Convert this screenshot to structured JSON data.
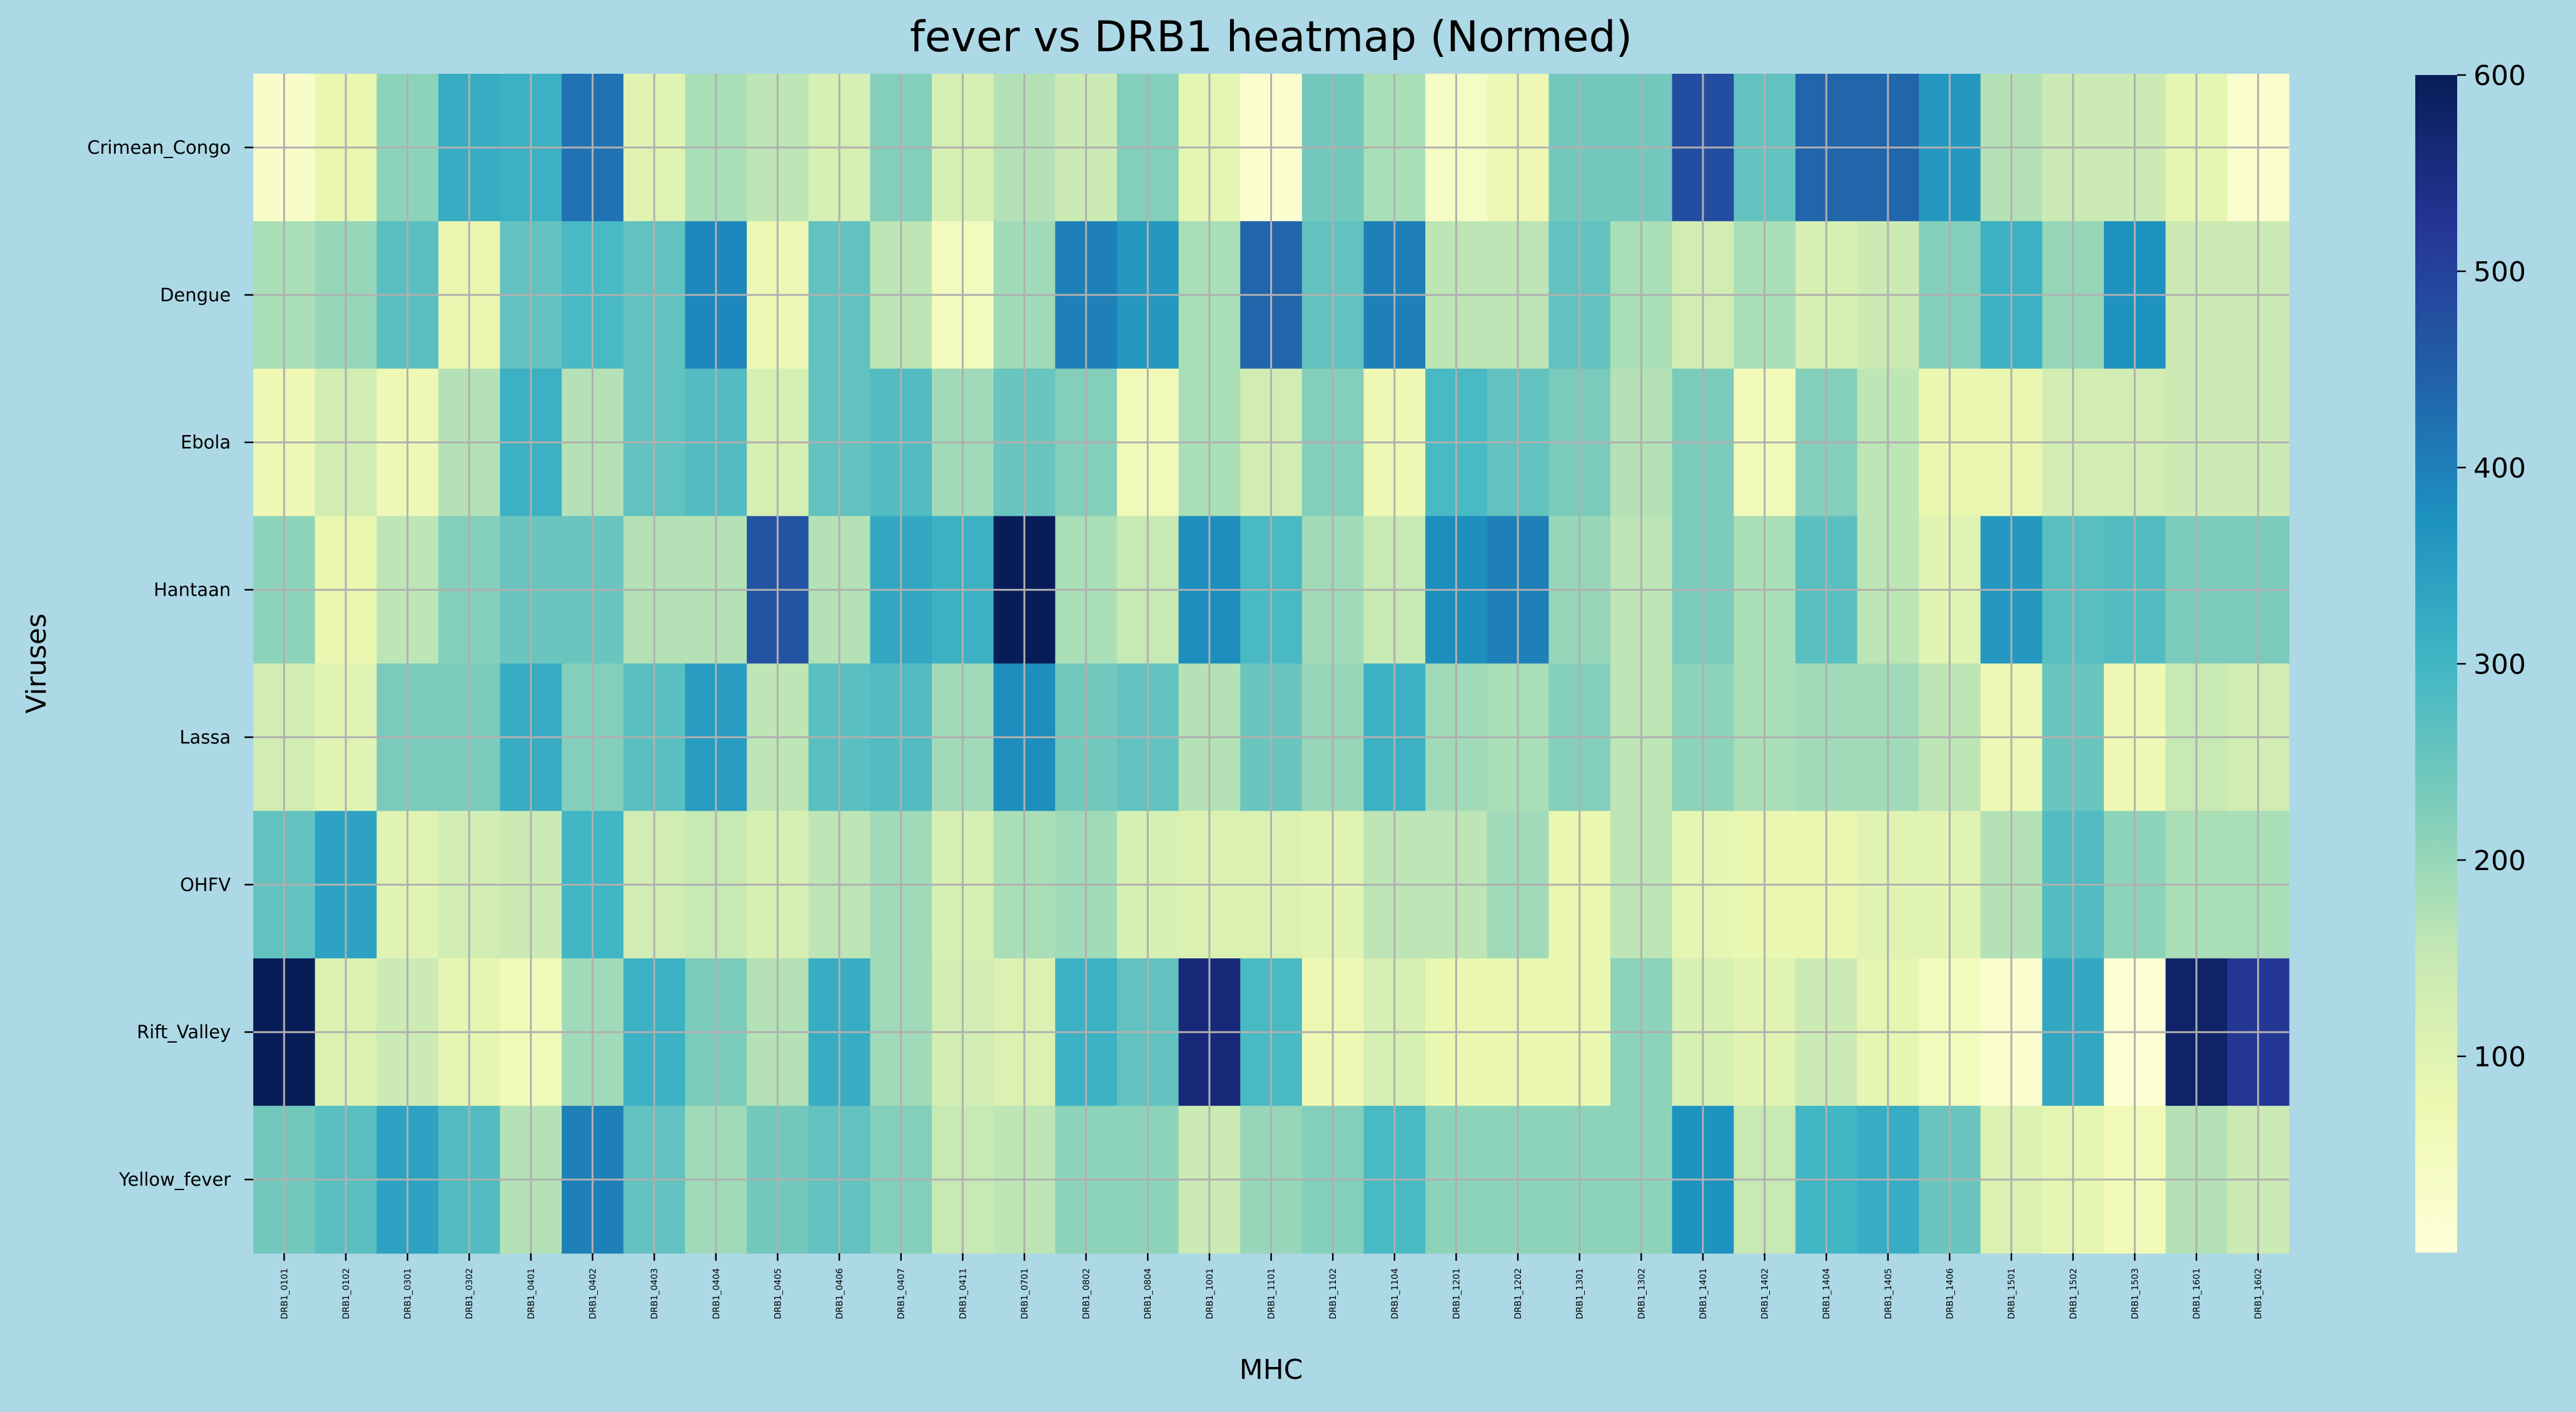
{
  "chart_data": {
    "type": "heatmap",
    "title": "fever vs DRB1 heatmap (Normed)",
    "xlabel": "MHC",
    "ylabel": "Viruses",
    "x_categories": [
      "DRB1_0101",
      "DRB1_0102",
      "DRB1_0301",
      "DRB1_0302",
      "DRB1_0401",
      "DRB1_0402",
      "DRB1_0403",
      "DRB1_0404",
      "DRB1_0405",
      "DRB1_0406",
      "DRB1_0407",
      "DRB1_0411",
      "DRB1_0701",
      "DRB1_0802",
      "DRB1_0804",
      "DRB1_1001",
      "DRB1_1101",
      "DRB1_1102",
      "DRB1_1104",
      "DRB1_1201",
      "DRB1_1202",
      "DRB1_1301",
      "DRB1_1302",
      "DRB1_1401",
      "DRB1_1402",
      "DRB1_1404",
      "DRB1_1405",
      "DRB1_1406",
      "DRB1_1501",
      "DRB1_1502",
      "DRB1_1503",
      "DRB1_1601",
      "DRB1_1602"
    ],
    "y_categories": [
      "Crimean_Congo",
      "Dengue",
      "Ebola",
      "Hantaan",
      "Lassa",
      "OHFV",
      "Rift_Valley",
      "Yellow_fever"
    ],
    "values": [
      [
        30,
        80,
        210,
        320,
        310,
        420,
        100,
        180,
        160,
        120,
        220,
        120,
        170,
        140,
        220,
        90,
        20,
        240,
        180,
        40,
        70,
        240,
        240,
        480,
        260,
        440,
        440,
        360,
        170,
        140,
        140,
        90,
        20
      ],
      [
        180,
        200,
        270,
        80,
        260,
        290,
        260,
        390,
        70,
        260,
        160,
        50,
        190,
        400,
        360,
        180,
        440,
        260,
        400,
        160,
        160,
        260,
        180,
        130,
        180,
        120,
        140,
        220,
        310,
        200,
        370,
        140,
        140
      ],
      [
        70,
        130,
        70,
        170,
        310,
        170,
        260,
        280,
        120,
        260,
        280,
        190,
        250,
        220,
        60,
        180,
        130,
        220,
        70,
        290,
        260,
        230,
        170,
        230,
        60,
        220,
        160,
        80,
        80,
        130,
        130,
        140,
        140
      ],
      [
        210,
        80,
        160,
        220,
        250,
        250,
        170,
        170,
        470,
        170,
        330,
        310,
        600,
        180,
        150,
        380,
        290,
        190,
        150,
        380,
        400,
        200,
        160,
        230,
        180,
        270,
        160,
        100,
        360,
        270,
        280,
        230,
        230
      ],
      [
        130,
        100,
        230,
        230,
        320,
        220,
        270,
        350,
        160,
        270,
        280,
        190,
        380,
        240,
        260,
        170,
        250,
        200,
        310,
        190,
        180,
        220,
        160,
        210,
        180,
        190,
        190,
        160,
        70,
        250,
        70,
        150,
        130
      ],
      [
        260,
        340,
        100,
        130,
        140,
        300,
        130,
        150,
        120,
        160,
        190,
        120,
        180,
        190,
        120,
        110,
        110,
        100,
        160,
        160,
        190,
        80,
        160,
        90,
        80,
        80,
        100,
        100,
        170,
        280,
        210,
        180,
        180
      ],
      [
        600,
        110,
        140,
        90,
        60,
        190,
        310,
        230,
        170,
        320,
        190,
        130,
        110,
        310,
        260,
        560,
        290,
        70,
        120,
        80,
        80,
        80,
        210,
        120,
        100,
        140,
        90,
        50,
        20,
        330,
        10,
        580,
        520
      ],
      [
        240,
        270,
        340,
        280,
        170,
        400,
        260,
        190,
        240,
        260,
        220,
        150,
        160,
        210,
        210,
        140,
        200,
        220,
        290,
        210,
        210,
        210,
        210,
        370,
        150,
        300,
        320,
        250,
        110,
        90,
        60,
        170,
        140
      ]
    ],
    "colorbar": {
      "range": [
        0,
        600
      ],
      "ticks": [
        100,
        200,
        300,
        400,
        500,
        600
      ]
    },
    "colormap": [
      "#ffffd9",
      "#edf8b1",
      "#c7e9b4",
      "#7fcdbb",
      "#41b6c4",
      "#1d91c0",
      "#225ea8",
      "#253494",
      "#081d58"
    ],
    "grid": true,
    "grid_color": "#b0b0b0"
  }
}
